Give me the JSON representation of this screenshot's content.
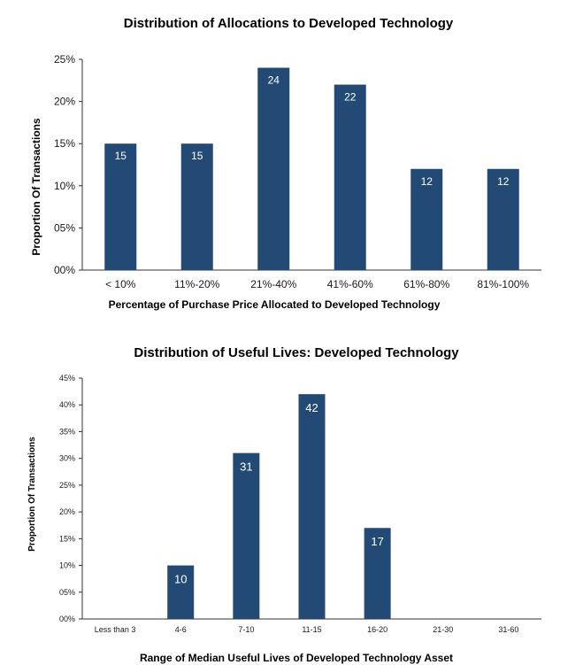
{
  "chart_data": [
    {
      "type": "bar",
      "title": "Distribution of Allocations to Developed Technology",
      "xlabel": "Percentage of Purchase Price Allocated to Developed Technology",
      "ylabel": "Proportion  Of Transactions",
      "categories": [
        "< 10%",
        "11%-20%",
        "21%-40%",
        "41%-60%",
        "61%-80%",
        "81%-100%"
      ],
      "values": [
        15,
        15,
        24,
        22,
        12,
        12
      ],
      "value_labels": [
        "15",
        "15",
        "24",
        "22",
        "12",
        "12"
      ],
      "yticks": [
        0,
        5,
        10,
        15,
        20,
        25
      ],
      "ytick_labels": [
        "00%",
        "05%",
        "10%",
        "15%",
        "20%",
        "25%"
      ],
      "ylim": [
        0,
        25
      ],
      "grid": false,
      "color": "#234a75"
    },
    {
      "type": "bar",
      "title": "Distribution of Useful Lives: Developed Technology",
      "xlabel": "Range of Median Useful Lives of Developed Technology Asset",
      "ylabel": "Proportion Of Transactions",
      "categories": [
        "Less than 3",
        "4-6",
        "7-10",
        "11-15",
        "16-20",
        "21-30",
        "31-60"
      ],
      "values": [
        0,
        10,
        31,
        42,
        17,
        0,
        0
      ],
      "value_labels": [
        "",
        "10",
        "31",
        "42",
        "17",
        "",
        ""
      ],
      "yticks": [
        0,
        5,
        10,
        15,
        20,
        25,
        30,
        35,
        40,
        45
      ],
      "ytick_labels": [
        "00%",
        "05%",
        "10%",
        "15%",
        "20%",
        "25%",
        "30%",
        "35%",
        "40%",
        "45%"
      ],
      "ylim": [
        0,
        45
      ],
      "grid": false,
      "color": "#234a75"
    }
  ]
}
